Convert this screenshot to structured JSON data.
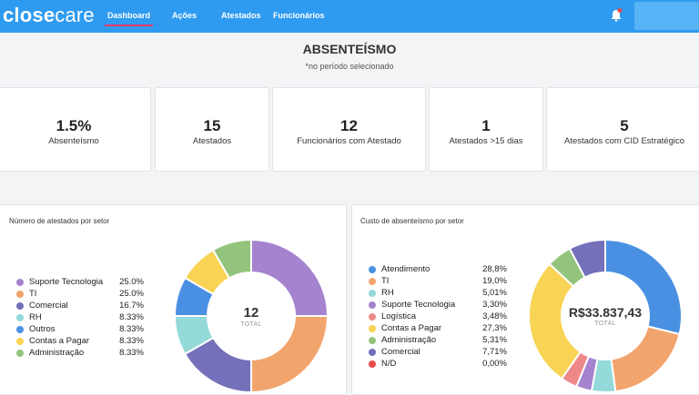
{
  "header": {
    "logo": "closecare",
    "nav": [
      {
        "label": "Dashboard",
        "active": true
      },
      {
        "label": "Ações",
        "active": false
      },
      {
        "label": "Atestados",
        "active": false
      },
      {
        "label": "Funcionários",
        "active": false
      }
    ],
    "notification_icon": "bell-icon",
    "accent_color": "#2e9bf0"
  },
  "page": {
    "title": "ABSENTEÍSMO",
    "subtitle": "*no período selecionado"
  },
  "kpis": [
    {
      "value": "1.5%",
      "label": "Absenteísmo"
    },
    {
      "value": "15",
      "label": "Atestados"
    },
    {
      "value": "12",
      "label": "Funcionários com Atestado"
    },
    {
      "value": "1",
      "label": "Atestados >15 dias"
    },
    {
      "value": "5",
      "label": "Atestados com CID Estratégico"
    }
  ],
  "chart_data": [
    {
      "type": "pie",
      "title": "Número de atestados por setor",
      "center_value": "12",
      "center_label": "TOTAL",
      "categories": [
        "Suporte Tecnologia",
        "TI",
        "Comercial",
        "RH",
        "Outros",
        "Contas a Pagar",
        "Administração"
      ],
      "values": [
        25.0,
        25.0,
        16.7,
        8.33,
        8.33,
        8.33,
        8.33
      ],
      "value_labels": [
        "25.0%",
        "25.0%",
        "16.7%",
        "8.33%",
        "8.33%",
        "8.33%",
        "8.33%"
      ],
      "colors": [
        "#a583cf",
        "#f2a46d",
        "#7470b9",
        "#93dad9",
        "#4a90e2",
        "#f8d354",
        "#93c47d"
      ],
      "legend_position": "left"
    },
    {
      "type": "pie",
      "title": "Custo de absenteísmo por setor",
      "center_value": "R$33.837,43",
      "center_label": "TOTAL",
      "categories": [
        "Atendimento",
        "TI",
        "RH",
        "Suporte Tecnologia",
        "Logística",
        "Contas a Pagar",
        "Administração",
        "Comercial",
        "N/D"
      ],
      "values": [
        28.8,
        19.0,
        5.01,
        3.3,
        3.48,
        27.3,
        5.31,
        7.71,
        0.0
      ],
      "value_labels": [
        "28,8%",
        "19,0%",
        "5,01%",
        "3,30%",
        "3,48%",
        "27,3%",
        "5,31%",
        "7,71%",
        "0,00%"
      ],
      "colors": [
        "#4a90e2",
        "#f2a46d",
        "#93dad9",
        "#a583cf",
        "#ee8888",
        "#f8d354",
        "#93c47d",
        "#7470b9",
        "#e84a4a"
      ],
      "legend_position": "left"
    }
  ]
}
